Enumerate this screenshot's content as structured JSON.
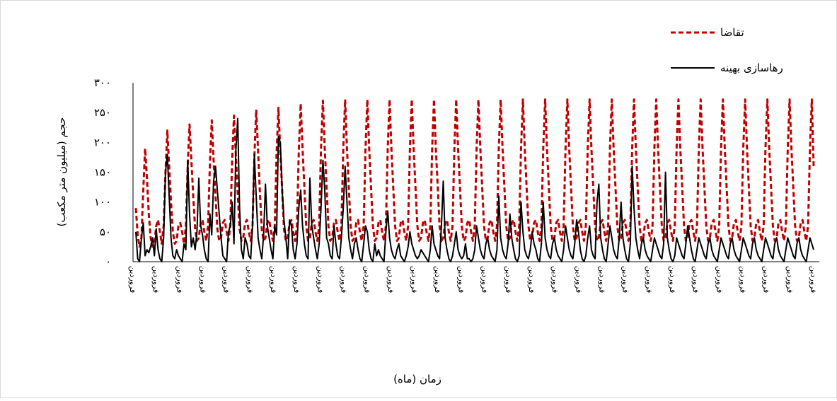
{
  "chart_data": {
    "type": "line",
    "title": "",
    "xlabel": "زمان (ماه)",
    "ylabel": "حجم (میلیون متر مکعب)",
    "ylim": [
      0,
      300
    ],
    "y_ticks": [
      0,
      50,
      100,
      150,
      200,
      250,
      300
    ],
    "y_tick_labels": [
      "۰",
      "۵۰",
      "۱۰۰",
      "۱۵۰",
      "۲۰۰",
      "۲۵۰",
      "۳۰۰"
    ],
    "x_tick_label": "فروردین",
    "x_tick_count": 30,
    "grid": false,
    "legend_position": "top-right",
    "series": [
      {
        "name": "تقاضا",
        "color": "#c00000",
        "style": "dashed",
        "annual_peaks": [
          95,
          190,
          220,
          230,
          237,
          245,
          255,
          258,
          265,
          270,
          272,
          272,
          272,
          272,
          272,
          272,
          272,
          272,
          272,
          272,
          272,
          272,
          272,
          272,
          272,
          272,
          272,
          272,
          272,
          272,
          272
        ],
        "values": [
          90,
          45,
          25,
          40,
          120,
          190,
          140,
          80,
          40,
          25,
          30,
          60,
          70,
          50,
          30,
          60,
          150,
          220,
          160,
          100,
          50,
          30,
          35,
          60,
          65,
          50,
          30,
          60,
          160,
          230,
          170,
          110,
          55,
          35,
          40,
          65,
          70,
          50,
          35,
          60,
          165,
          237,
          170,
          110,
          55,
          35,
          40,
          65,
          70,
          50,
          35,
          60,
          170,
          245,
          180,
          115,
          55,
          35,
          40,
          65,
          70,
          50,
          35,
          60,
          175,
          255,
          185,
          115,
          55,
          35,
          40,
          65,
          70,
          50,
          35,
          60,
          180,
          258,
          185,
          120,
          55,
          35,
          40,
          65,
          70,
          50,
          35,
          60,
          185,
          265,
          190,
          125,
          60,
          35,
          40,
          65,
          70,
          50,
          35,
          60,
          190,
          270,
          190,
          125,
          60,
          35,
          40,
          65,
          70,
          50,
          35,
          60,
          190,
          272,
          190,
          125,
          60,
          35,
          40,
          65,
          70,
          50,
          35,
          60,
          190,
          272,
          190,
          125,
          60,
          35,
          40,
          65,
          70,
          50,
          35,
          60,
          190,
          272,
          190,
          125,
          60,
          35,
          40,
          65,
          70,
          50,
          35,
          60,
          190,
          272,
          190,
          125,
          60,
          35,
          40,
          65,
          70,
          50,
          35,
          60,
          190,
          272,
          190,
          125,
          60,
          35,
          40,
          65,
          70,
          50,
          35,
          60,
          190,
          272,
          190,
          125,
          60,
          35,
          40,
          65,
          70,
          50,
          35,
          60,
          190,
          272,
          190,
          125,
          60,
          35,
          40,
          65,
          70,
          50,
          35,
          60,
          190,
          272,
          190,
          125,
          60,
          35,
          40,
          65,
          70,
          50,
          35,
          60,
          190,
          272,
          190,
          125,
          60,
          35,
          40,
          65,
          70,
          50,
          35,
          60,
          190,
          272,
          190,
          125,
          60,
          35,
          40,
          65,
          70,
          50,
          35,
          60,
          190,
          272,
          190,
          125,
          60,
          35,
          40,
          65,
          70,
          50,
          35,
          60,
          190,
          272,
          190,
          125,
          60,
          35,
          40,
          65,
          70,
          50,
          35,
          60,
          190,
          272,
          190,
          125,
          60,
          35,
          40,
          65,
          70,
          50,
          35,
          60,
          190,
          272,
          190,
          125,
          60,
          35,
          40,
          65,
          70,
          50,
          35,
          60,
          190,
          272,
          190,
          125,
          60,
          35,
          40,
          65,
          70,
          50,
          35,
          60,
          190,
          272,
          190,
          125,
          60,
          35,
          40,
          65,
          70,
          50,
          35,
          60,
          190,
          272,
          190,
          125,
          60,
          35,
          40,
          65,
          70,
          50,
          35,
          60,
          190,
          272,
          190,
          125,
          60,
          35,
          40,
          65,
          70,
          50,
          35,
          60,
          190,
          272,
          190,
          125,
          60,
          35,
          40,
          65,
          70,
          50,
          35,
          60,
          190,
          272,
          190,
          125,
          60,
          35,
          40,
          65,
          70,
          50,
          35,
          60,
          190,
          272,
          190,
          125,
          60,
          35,
          40,
          65,
          70,
          50,
          35,
          60,
          190,
          272,
          160
        ]
      },
      {
        "name": "رهاسازی بهینه",
        "color": "#000000",
        "style": "solid",
        "values": [
          50,
          5,
          0,
          40,
          65,
          10,
          20,
          15,
          25,
          40,
          10,
          55,
          20,
          5,
          0,
          40,
          150,
          180,
          110,
          40,
          10,
          5,
          20,
          10,
          5,
          0,
          30,
          20,
          170,
          80,
          25,
          40,
          20,
          50,
          140,
          60,
          45,
          20,
          5,
          0,
          80,
          45,
          135,
          160,
          120,
          80,
          40,
          10,
          5,
          0,
          50,
          60,
          100,
          30,
          185,
          240,
          90,
          20,
          5,
          40,
          30,
          10,
          5,
          60,
          180,
          110,
          40,
          20,
          5,
          45,
          130,
          60,
          40,
          20,
          5,
          60,
          45,
          210,
          200,
          120,
          70,
          40,
          5,
          70,
          60,
          20,
          5,
          30,
          90,
          120,
          60,
          30,
          10,
          5,
          140,
          60,
          40,
          20,
          5,
          30,
          90,
          170,
          120,
          40,
          30,
          10,
          5,
          60,
          30,
          10,
          5,
          40,
          90,
          160,
          100,
          40,
          20,
          5,
          30,
          40,
          20,
          5,
          0,
          30,
          60,
          50,
          20,
          5,
          0,
          30,
          10,
          20,
          10,
          5,
          0,
          50,
          85,
          40,
          20,
          10,
          5,
          20,
          30,
          10,
          5,
          0,
          10,
          25,
          50,
          30,
          20,
          10,
          5,
          10,
          20,
          15,
          10,
          5,
          0,
          20,
          60,
          30,
          20,
          10,
          5,
          60,
          135,
          40,
          20,
          5,
          0,
          10,
          30,
          50,
          20,
          10,
          5,
          10,
          30,
          5,
          5,
          0,
          5,
          20,
          60,
          40,
          20,
          10,
          5,
          30,
          40,
          20,
          10,
          5,
          0,
          20,
          110,
          40,
          20,
          10,
          5,
          30,
          80,
          40,
          20,
          5,
          0,
          10,
          100,
          50,
          20,
          10,
          5,
          20,
          50,
          30,
          20,
          5,
          0,
          30,
          100,
          40,
          20,
          10,
          5,
          30,
          40,
          20,
          10,
          5,
          0,
          20,
          60,
          40,
          20,
          10,
          5,
          30,
          70,
          50,
          20,
          5,
          0,
          10,
          40,
          60,
          20,
          10,
          5,
          100,
          130,
          40,
          20,
          5,
          0,
          30,
          60,
          40,
          20,
          10,
          5,
          40,
          100,
          40,
          20,
          5,
          0,
          30,
          160,
          90,
          40,
          20,
          5,
          30,
          40,
          20,
          10,
          5,
          0,
          20,
          40,
          30,
          20,
          10,
          5,
          30,
          150,
          40,
          20,
          5,
          0,
          10,
          40,
          30,
          20,
          10,
          5,
          30,
          60,
          40,
          20,
          5,
          0,
          20,
          40,
          30,
          20,
          10,
          5,
          30,
          40,
          20,
          10,
          5,
          0,
          20,
          40,
          30,
          20,
          10,
          5,
          30,
          40,
          20,
          10,
          5,
          0,
          20,
          40,
          30,
          20,
          10,
          5,
          30,
          40,
          20,
          10,
          5,
          0,
          20,
          40,
          30,
          20,
          10,
          5,
          30,
          40,
          20,
          10,
          5,
          0,
          20,
          40,
          30,
          20,
          10,
          5,
          30,
          40,
          20,
          10,
          5,
          0,
          20,
          40,
          30,
          20
        ]
      }
    ]
  }
}
